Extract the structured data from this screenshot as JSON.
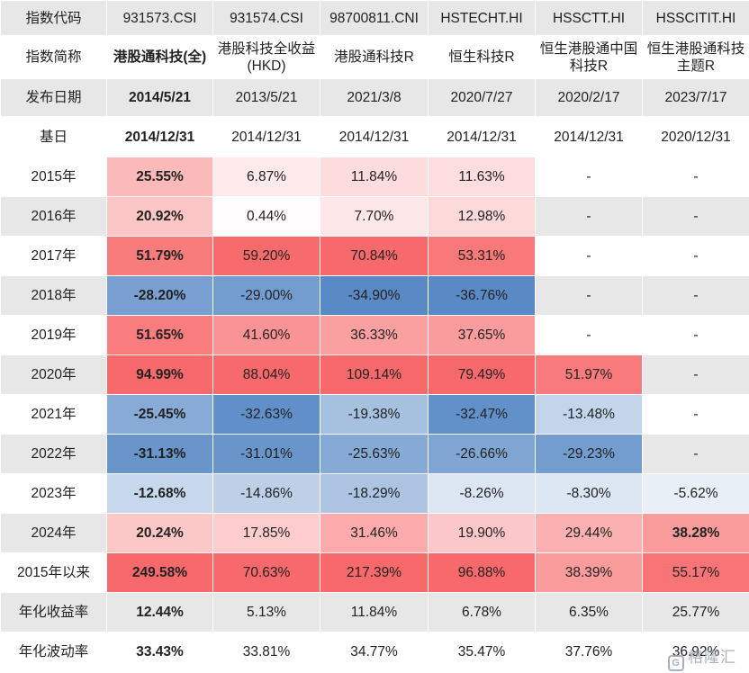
{
  "chart_data": {
    "type": "table",
    "header_rows": [
      {
        "label": "指数代码",
        "cells": [
          "931573.CSI",
          "931574.CSI",
          "98700811.CNI",
          "HSTECHT.HI",
          "HSSCTT.HI",
          "HSSCITIT.HI"
        ]
      },
      {
        "label": "指数简称",
        "cells": [
          "港股通科技(全)",
          "港股科技全收益(HKD)",
          "港股通科技R",
          "恒生科技R",
          "恒生港股通中国科技R",
          "恒生港股通科技主题R"
        ]
      },
      {
        "label": "发布日期",
        "cells": [
          "2014/5/21",
          "2013/5/21",
          "2021/3/8",
          "2020/7/27",
          "2020/2/17",
          "2023/7/17"
        ]
      },
      {
        "label": "基日",
        "cells": [
          "2014/12/31",
          "2014/12/31",
          "2014/12/31",
          "2014/12/31",
          "2014/12/31",
          "2020/12/31"
        ]
      }
    ],
    "rows": [
      {
        "label": "2015年",
        "values": [
          25.55,
          6.87,
          11.84,
          11.63,
          null,
          null
        ]
      },
      {
        "label": "2016年",
        "values": [
          20.92,
          0.44,
          7.7,
          12.98,
          null,
          null
        ]
      },
      {
        "label": "2017年",
        "values": [
          51.79,
          59.2,
          70.84,
          53.31,
          null,
          null
        ]
      },
      {
        "label": "2018年",
        "values": [
          -28.2,
          -29.0,
          -34.9,
          -36.76,
          null,
          null
        ]
      },
      {
        "label": "2019年",
        "values": [
          51.65,
          41.6,
          36.33,
          37.65,
          null,
          null
        ]
      },
      {
        "label": "2020年",
        "values": [
          94.99,
          88.04,
          109.14,
          79.49,
          51.97,
          null
        ]
      },
      {
        "label": "2021年",
        "values": [
          -25.45,
          -32.63,
          -19.38,
          -32.47,
          -13.48,
          null
        ]
      },
      {
        "label": "2022年",
        "values": [
          -31.13,
          -31.01,
          -25.63,
          -26.66,
          -29.23,
          null
        ]
      },
      {
        "label": "2023年",
        "values": [
          -12.68,
          -14.86,
          -18.29,
          -8.26,
          -8.3,
          -5.62
        ]
      },
      {
        "label": "2024年",
        "values": [
          20.24,
          17.85,
          31.46,
          19.9,
          29.44,
          38.28
        ]
      },
      {
        "label": "2015年以来",
        "values": [
          249.58,
          70.63,
          217.39,
          96.88,
          38.39,
          55.17
        ]
      },
      {
        "label": "年化收益率",
        "values": [
          12.44,
          5.13,
          11.84,
          6.78,
          6.35,
          25.77
        ]
      },
      {
        "label": "年化波动率",
        "values": [
          33.43,
          33.81,
          34.77,
          35.47,
          37.76,
          36.92
        ]
      }
    ],
    "missing_symbol": "-",
    "value_suffix": "%",
    "highlight_column": 0,
    "highlight_cells": [
      [
        9,
        5
      ]
    ],
    "colors": {
      "header_bg": "#e7e7e7",
      "label_bg_even": "#e7e7e7",
      "white": "#ffffff",
      "positive_max": "#f8696b",
      "negative_max": "#5a8ac6"
    }
  },
  "watermark": "格隆汇"
}
